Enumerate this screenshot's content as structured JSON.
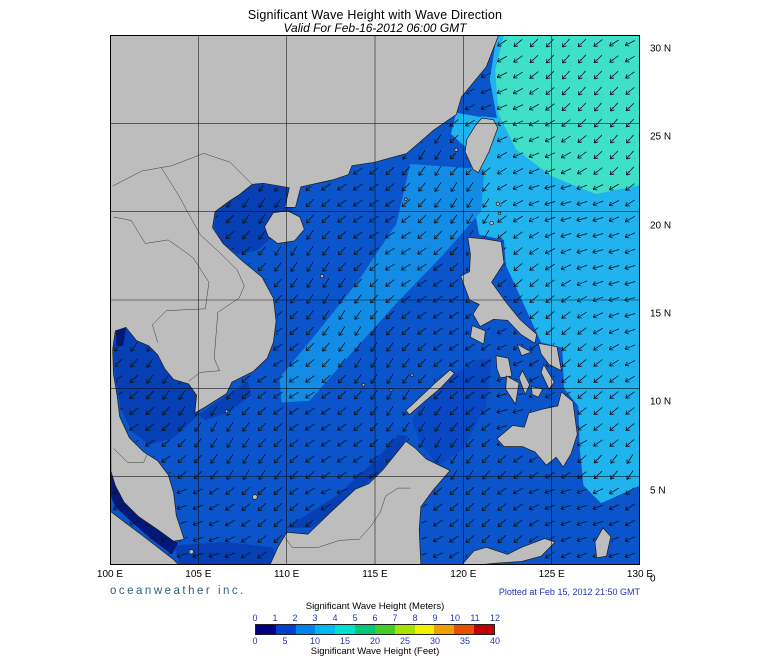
{
  "title": "Significant Wave Height with Wave Direction",
  "subtitle": "Valid For Feb-16-2012 06:00 GMT",
  "branding": "oceanweather inc.",
  "plotted": "Plotted at Feb 15, 2012 21:50 GMT",
  "axes": {
    "x_ticks": [
      "100 E",
      "105 E",
      "110 E",
      "115 E",
      "120 E",
      "125 E",
      "130 E"
    ],
    "y_ticks": [
      "30 N",
      "25 N",
      "20 N",
      "15 N",
      "10 N",
      "5 N",
      "0"
    ]
  },
  "legend": {
    "meters_label": "Significant Wave Height (Meters)",
    "feet_label": "Significant Wave Height (Feet)",
    "meters_ticks": [
      "0",
      "1",
      "2",
      "3",
      "4",
      "5",
      "6",
      "7",
      "8",
      "9",
      "10",
      "11",
      "12"
    ],
    "feet_ticks": [
      "0",
      "5",
      "10",
      "15",
      "20",
      "25",
      "30",
      "35",
      "40"
    ],
    "colors": [
      "#000080",
      "#0040d0",
      "#0084e8",
      "#00b8f0",
      "#00e0cc",
      "#00c878",
      "#44cc28",
      "#a8e000",
      "#f0f000",
      "#f0a000",
      "#e85000",
      "#c00000"
    ]
  },
  "map_colors": {
    "base": "#0a54cc",
    "band2": "#128ce4",
    "band3": "#1fb4ee",
    "band4": "#3ee0c8",
    "low": "#0640b4",
    "sulu": "#0848c4",
    "vlow": "#031878",
    "land": "#bdbdbd",
    "coast": "#1a1a1a",
    "border": "#3a3a3a",
    "grid": "#000000",
    "arrow": "#0a1420"
  }
}
